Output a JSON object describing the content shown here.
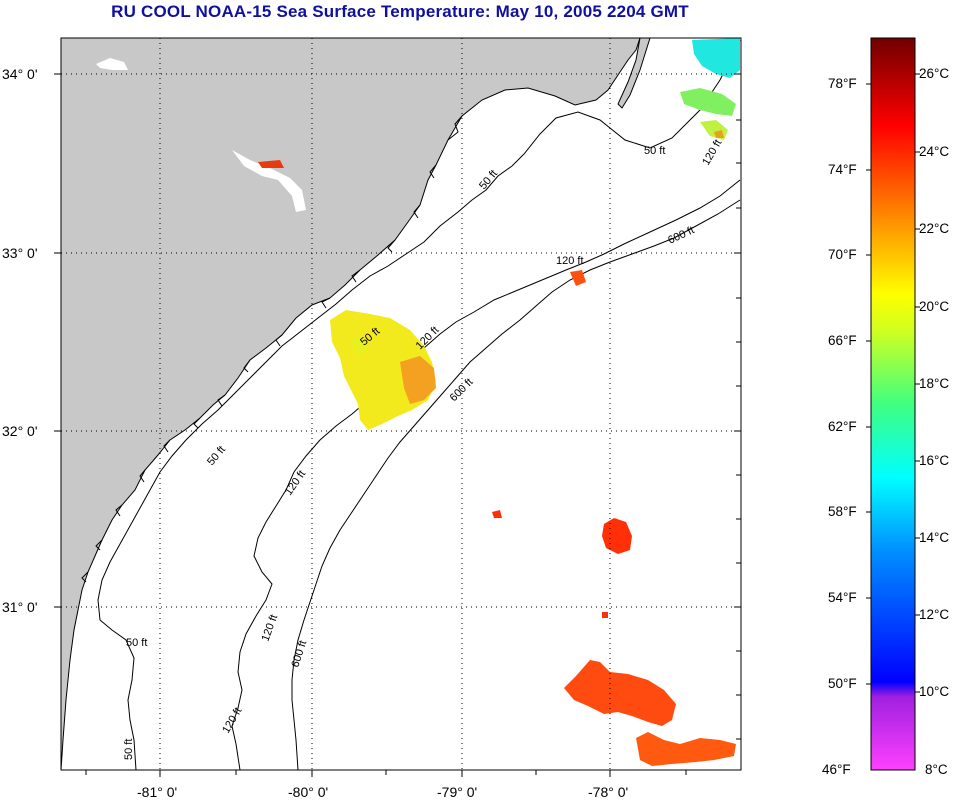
{
  "title": "RU COOL  NOAA-15  Sea Surface Temperature:  May 10, 2005 2204 GMT",
  "lat_labels": [
    "34° 0'",
    "33° 0'",
    "32° 0'",
    "31° 0'"
  ],
  "lon_labels": [
    "-81° 0'",
    "-80° 0'",
    "-79° 0'",
    "-78° 0'"
  ],
  "isobath_labels": [
    "50 ft",
    "120 ft",
    "600 ft"
  ],
  "colorbar": {
    "fahrenheit": [
      "78°F",
      "74°F",
      "70°F",
      "66°F",
      "62°F",
      "58°F",
      "54°F",
      "50°F",
      "46°F"
    ],
    "celsius": [
      "26°C",
      "24°C",
      "22°C",
      "20°C",
      "18°C",
      "16°C",
      "14°C",
      "12°C",
      "10°C",
      "8°C"
    ],
    "colors": [
      "#7a0000",
      "#ff0000",
      "#ff8000",
      "#ffff00",
      "#60ff60",
      "#00ffff",
      "#0080ff",
      "#0000ff",
      "#8000c0",
      "#ff40ff"
    ]
  },
  "sst_patches": [
    {
      "name": "sst-patch-nearshore",
      "temp_c": 20.5,
      "color": "#f4ec20"
    },
    {
      "name": "sst-patch-northeast",
      "temp_c": 17.0,
      "color": "#80f060"
    },
    {
      "name": "sst-patch-gulfstream-south",
      "temp_c": 23.5,
      "color": "#ff5010"
    },
    {
      "name": "sst-patch-gulfstream-mid",
      "temp_c": 24.0,
      "color": "#ff3008"
    }
  ]
}
